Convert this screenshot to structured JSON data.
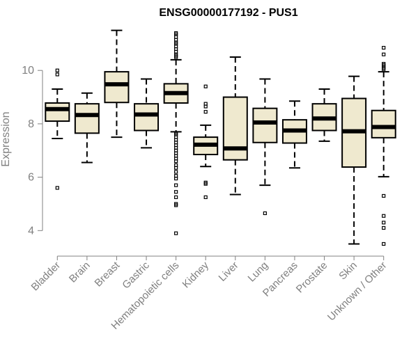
{
  "chart_data": {
    "type": "box",
    "title": "ENSG00000177192 - PUS1",
    "ylabel": "Expression",
    "ylim": [
      3.2,
      11.7
    ],
    "yticks": [
      4,
      6,
      8,
      10
    ],
    "box_fill": "#efe9cf",
    "categories": [
      "Bladder",
      "Brain",
      "Breast",
      "Gastric",
      "Hematopoietic cells",
      "Kidney",
      "Liver",
      "Lung",
      "Pancreas",
      "Prostate",
      "Skin",
      "Unknown / Other"
    ],
    "boxes": [
      {
        "whisker_low": 7.45,
        "q1": 8.1,
        "median": 8.55,
        "q3": 8.78,
        "whisker_high": 9.3,
        "outliers": [
          5.6,
          9.85,
          10.0
        ]
      },
      {
        "whisker_low": 6.55,
        "q1": 7.65,
        "median": 8.33,
        "q3": 8.75,
        "whisker_high": 9.15,
        "outliers": []
      },
      {
        "whisker_low": 7.5,
        "q1": 8.8,
        "median": 9.48,
        "q3": 9.95,
        "whisker_high": 11.5,
        "outliers": []
      },
      {
        "whisker_low": 7.1,
        "q1": 7.75,
        "median": 8.35,
        "q3": 8.75,
        "whisker_high": 9.68,
        "outliers": []
      },
      {
        "whisker_low": 7.7,
        "q1": 8.78,
        "median": 9.15,
        "q3": 9.5,
        "whisker_high": 10.4,
        "outliers": [
          3.9,
          4.95,
          5.0,
          5.25,
          5.45,
          5.7,
          5.95,
          6.05,
          6.2,
          6.35,
          6.45,
          6.6,
          6.7,
          6.8,
          6.9,
          7.0,
          7.1,
          7.2,
          7.3,
          7.4,
          7.5,
          7.6,
          7.65,
          10.5,
          10.55,
          10.6,
          10.7,
          10.8,
          10.9,
          11.0,
          11.05,
          11.15,
          11.25,
          11.35,
          11.4
        ]
      },
      {
        "whisker_low": 6.4,
        "q1": 6.85,
        "median": 7.22,
        "q3": 7.5,
        "whisker_high": 7.95,
        "outliers": [
          5.25,
          5.75,
          5.8,
          8.45,
          8.65,
          8.75,
          9.4
        ]
      },
      {
        "whisker_low": 5.35,
        "q1": 6.65,
        "median": 7.08,
        "q3": 9.0,
        "whisker_high": 10.5,
        "outliers": []
      },
      {
        "whisker_low": 5.7,
        "q1": 7.3,
        "median": 8.05,
        "q3": 8.58,
        "whisker_high": 9.68,
        "outliers": [
          4.65
        ]
      },
      {
        "whisker_low": 6.35,
        "q1": 7.28,
        "median": 7.75,
        "q3": 8.15,
        "whisker_high": 8.85,
        "outliers": []
      },
      {
        "whisker_low": 7.35,
        "q1": 7.75,
        "median": 8.2,
        "q3": 8.75,
        "whisker_high": 9.3,
        "outliers": []
      },
      {
        "whisker_low": 3.5,
        "q1": 6.38,
        "median": 7.72,
        "q3": 8.95,
        "whisker_high": 9.78,
        "outliers": []
      },
      {
        "whisker_low": 6.02,
        "q1": 7.48,
        "median": 7.88,
        "q3": 8.5,
        "whisker_high": 9.95,
        "outliers": [
          3.5,
          4.1,
          4.3,
          4.55,
          5.3,
          10.05,
          10.1,
          10.15,
          10.2,
          10.25,
          10.6,
          10.85
        ]
      }
    ]
  }
}
